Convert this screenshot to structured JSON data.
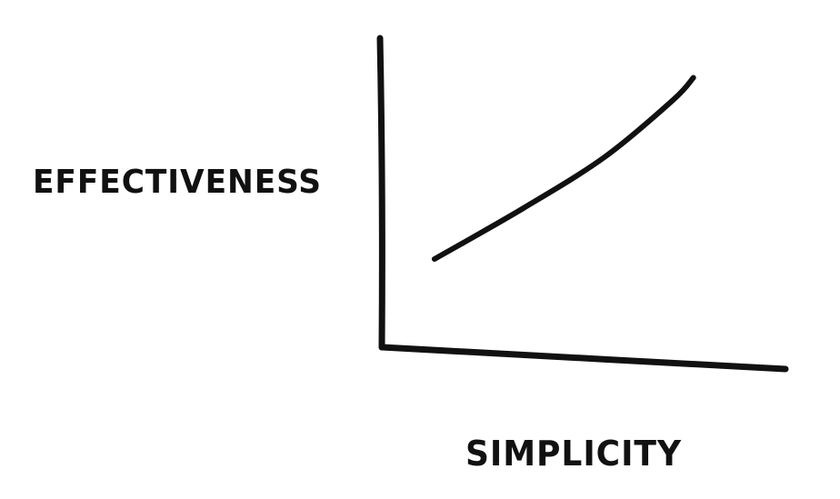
{
  "chart_data": {
    "type": "line",
    "title": "",
    "xlabel": "SIMPLICITY",
    "ylabel": "EFFECTIVENESS",
    "grid": false,
    "series": [
      {
        "points": [
          {
            "x": 0.13,
            "y": 0.3
          },
          {
            "x": 0.35,
            "y": 0.46
          },
          {
            "x": 0.55,
            "y": 0.62
          },
          {
            "x": 0.72,
            "y": 0.8
          },
          {
            "x": 0.77,
            "y": 0.87
          }
        ]
      }
    ],
    "colors": {
      "ink": "#111111",
      "background": "#ffffff"
    }
  }
}
